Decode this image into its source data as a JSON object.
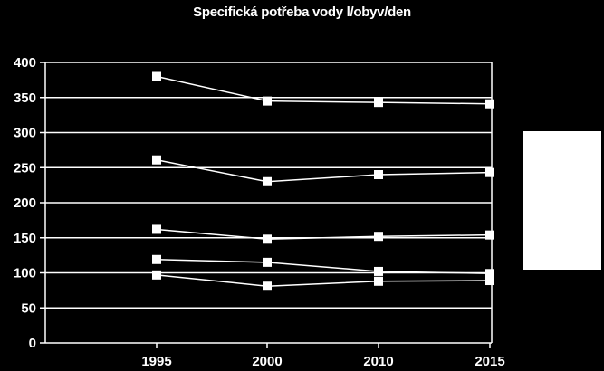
{
  "chart_data": {
    "type": "line",
    "title": "Specifická potřeba vody l/obyv/den",
    "xlabel": "",
    "ylabel": "",
    "categories": [
      "1995",
      "2000",
      "2010",
      "2015"
    ],
    "ylim": [
      0,
      400
    ],
    "yticks": [
      0,
      50,
      100,
      150,
      200,
      250,
      300,
      350,
      400
    ],
    "grid": true,
    "legend": "right",
    "colors": {
      "background": "#000000",
      "foreground": "#ffffff",
      "legend_box": "#ffffff"
    },
    "series": [
      {
        "values": [
          380,
          345,
          343,
          341
        ]
      },
      {
        "values": [
          261,
          230,
          240,
          243
        ]
      },
      {
        "values": [
          162,
          148,
          152,
          154
        ]
      },
      {
        "values": [
          119,
          115,
          102,
          99
        ]
      },
      {
        "values": [
          97,
          81,
          88,
          89
        ]
      }
    ]
  }
}
